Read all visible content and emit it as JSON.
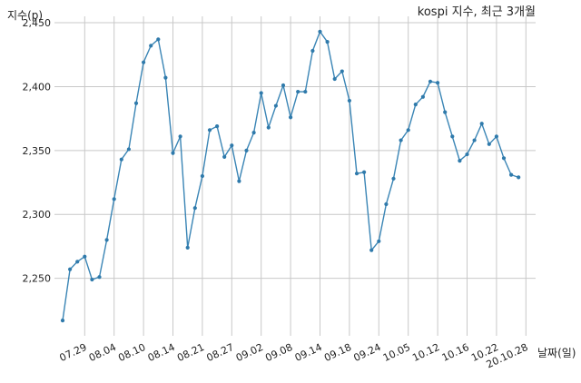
{
  "chart_data": {
    "type": "line",
    "title": "kospi 지수, 최근 3개월",
    "xlabel": "날짜(일)",
    "ylabel": "지수(p)",
    "ylim": [
      2205,
      2455
    ],
    "yticks": [
      2250,
      2300,
      2350,
      2400,
      2450
    ],
    "ytick_labels": [
      "2,250",
      "2,300",
      "2,350",
      "2,400",
      "2,450"
    ],
    "xtick_labels": [
      "07.29",
      "08.04",
      "08.10",
      "08.14",
      "08.21",
      "08.27",
      "09.02",
      "09.08",
      "09.14",
      "09.18",
      "09.24",
      "10.05",
      "10.12",
      "10.16",
      "10.22",
      "20.10.28"
    ],
    "xtick_indices": [
      3,
      7,
      11,
      15,
      19,
      23,
      27,
      31,
      35,
      39,
      43,
      47,
      51,
      55,
      59,
      63
    ],
    "grid": true,
    "series": [
      {
        "values": [
          2217,
          2257,
          2263,
          2267,
          2249,
          2251,
          2280,
          2312,
          2343,
          2351,
          2387,
          2419,
          2432,
          2437,
          2407,
          2348,
          2361,
          2274,
          2305,
          2330,
          2366,
          2369,
          2345,
          2354,
          2326,
          2350,
          2364,
          2395,
          2368,
          2385,
          2401,
          2376,
          2396,
          2396,
          2428,
          2443,
          2435,
          2406,
          2412,
          2389,
          2332,
          2333,
          2272,
          2279,
          2308,
          2328,
          2358,
          2366,
          2386,
          2392,
          2404,
          2403,
          2380,
          2361,
          2342,
          2347,
          2358,
          2371,
          2355,
          2361,
          2344,
          2331,
          2329
        ]
      }
    ]
  }
}
